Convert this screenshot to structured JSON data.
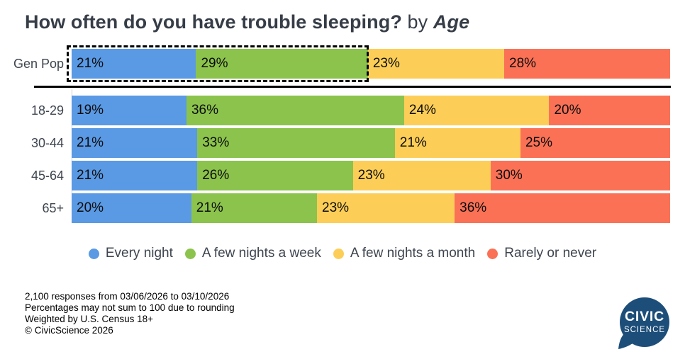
{
  "title": {
    "main": "How often do you have trouble sleeping?",
    "connector": "by",
    "segment": "Age"
  },
  "chart_data": {
    "type": "bar",
    "orientation": "horizontal",
    "stacked": true,
    "unit": "%",
    "title": "How often do you have trouble sleeping? by Age",
    "categories": [
      "Gen Pop",
      "18-29",
      "30-44",
      "45-64",
      "65+"
    ],
    "series": [
      {
        "name": "Every night",
        "color": "#5A99E4",
        "values": [
          21,
          19,
          21,
          21,
          20
        ]
      },
      {
        "name": "A few nights a week",
        "color": "#8BC34C",
        "values": [
          29,
          36,
          33,
          26,
          21
        ]
      },
      {
        "name": "A few nights a month",
        "color": "#FDCE57",
        "values": [
          23,
          24,
          21,
          23,
          23
        ]
      },
      {
        "name": "Rarely or never",
        "color": "#FA7156",
        "values": [
          28,
          20,
          25,
          30,
          36
        ]
      }
    ],
    "baseline_category": "Gen Pop",
    "highlight": {
      "category": "Gen Pop",
      "series": [
        "Every night",
        "A few nights a week"
      ],
      "style": "dashed-outline"
    },
    "value_labels": "inside-left",
    "legend_position": "bottom-center",
    "xlim": [
      0,
      100
    ]
  },
  "footnotes": {
    "lines": [
      "2,100 responses from 03/06/2026 to 03/10/2026",
      "Percentages may not sum to 100 due to rounding",
      "Weighted by U.S. Census 18+",
      "© CivicScience 2026"
    ]
  },
  "logo": {
    "line1": "CIVIC",
    "line2": "SCIENCE",
    "color": "#1D4E79"
  }
}
